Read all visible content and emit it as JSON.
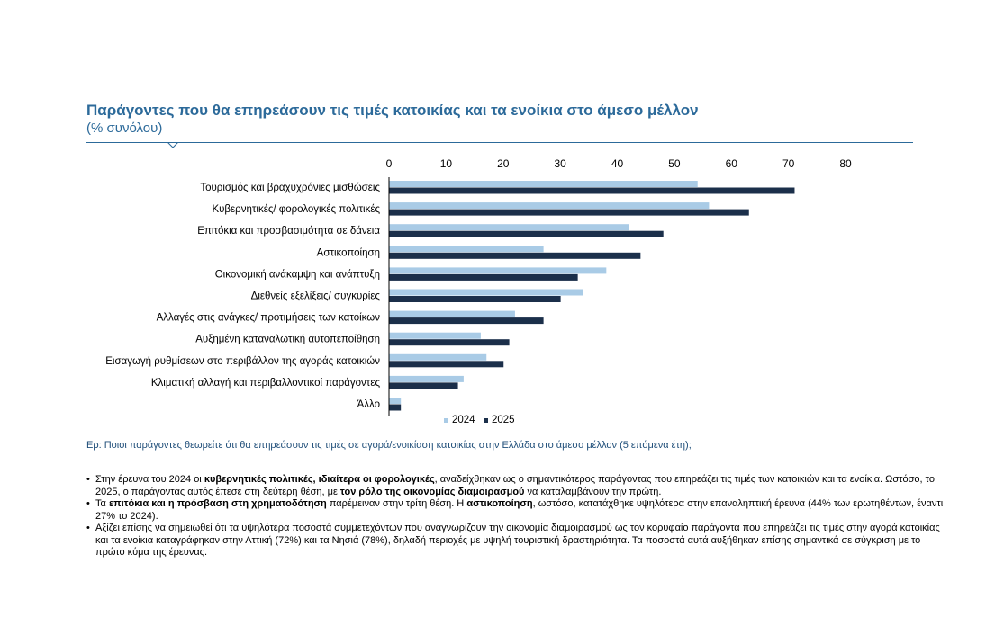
{
  "header": {
    "title": "Παράγοντες που θα επηρεάσουν τις τιμές κατοικίας και τα ενοίκια στο άμεσο μέλλον",
    "subtitle": "(% συνόλου)"
  },
  "chart_data": {
    "type": "bar",
    "orientation": "horizontal",
    "categories": [
      "Τουρισμός και βραχυχρόνιες μισθώσεις",
      "Κυβερνητικές/ φορολογικές πολιτικές",
      "Επιτόκια και προσβασιμότητα σε δάνεια",
      "Αστικοποίηση",
      "Οικονομική ανάκαμψη και ανάπτυξη",
      "Διεθνείς εξελίξεις/ συγκυρίες",
      "Αλλαγές στις ανάγκες/ προτιμήσεις των κατοίκων",
      "Αυξημένη καταναλωτική αυτοπεποίθηση",
      "Εισαγωγή ρυθμίσεων στο περιβάλλον της αγοράς κατοικιών",
      "Κλιματική αλλαγή και περιβαλλοντικοί παράγοντες",
      "Άλλο"
    ],
    "series": [
      {
        "name": "2024",
        "color": "#a9cbe6",
        "values": [
          54,
          56,
          42,
          27,
          38,
          34,
          22,
          16,
          17,
          13,
          2
        ]
      },
      {
        "name": "2025",
        "color": "#1b2f4a",
        "values": [
          71,
          63,
          48,
          44,
          33,
          30,
          27,
          21,
          20,
          12,
          2
        ]
      }
    ],
    "xlim": [
      0,
      80
    ],
    "xticks": [
      "0",
      "10",
      "20",
      "30",
      "40",
      "50",
      "60",
      "70",
      "80"
    ],
    "title": "Παράγοντες που θα επηρεάσουν τις τιμές κατοικίας και τα ενοίκια στο άμεσο μέλλον",
    "xlabel": "",
    "ylabel": "",
    "legend": "bottom",
    "grid": false
  },
  "footnote": {
    "question": "Ερ: Ποιοι παράγοντες θεωρείτε ότι θα επηρεάσουν τις τιμές σε αγορά/ενοικίαση κατοικίας στην Ελλάδα στο άμεσο μέλλον (5 επόμενα έτη);"
  },
  "bullets": [
    {
      "p1": "Στην έρευνα του 2024 οι ",
      "b1": "κυβερνητικές πολιτικές, ιδιαίτερα οι φορολογικές",
      "p2": ", αναδείχθηκαν ως ο σημαντικότερος παράγοντας που επηρεάζει τις τιμές των κατοικιών και τα ενοίκια. Ωστόσο, το 2025, ο παράγοντας αυτός έπεσε στη δεύτερη θέση, με ",
      "b2": "τον ρόλο της οικονομίας διαμοιρασμού",
      "p3": " να καταλαμβάνουν την πρώτη."
    },
    {
      "p1": "Τα ",
      "b1": "επιτόκια και η πρόσβαση στη χρηματοδότηση",
      "p2": " παρέμειναν στην τρίτη θέση. Η ",
      "b2": "αστικοποίηση",
      "p3": ", ωστόσο, κατατάχθηκε υψηλότερα στην επαναληπτική έρευνα (44% των ερωτηθέντων, έναντι 27% το 2024)."
    },
    {
      "text": "Αξίζει επίσης να σημειωθεί ότι τα υψηλότερα ποσοστά συμμετεχόντων που αναγνωρίζουν την οικονομία διαμοιρασμού ως τον κορυφαίο παράγοντα που επηρεάζει τις τιμές στην αγορά κατοικίας και τα ενοίκια καταγράφηκαν στην Αττική (72%) και τα Νησιά (78%), δηλαδή περιοχές με υψηλή τουριστική δραστηριότητα. Τα ποσοστά αυτά αυξήθηκαν επίσης σημαντικά σε σύγκριση με το πρώτο κύμα της έρευνας."
    }
  ]
}
